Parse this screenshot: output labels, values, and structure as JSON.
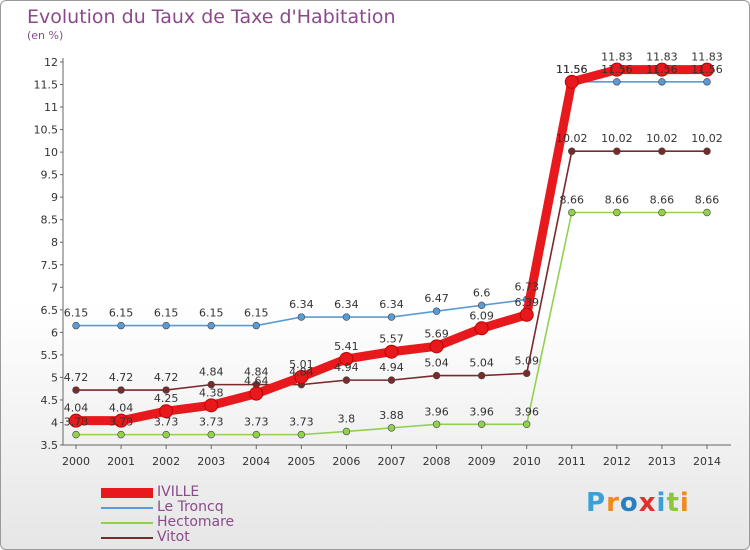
{
  "title": "Evolution du Taux de Taxe d'Habitation",
  "subtitle": "(en %)",
  "logo": {
    "text": "Proxiti",
    "colors": [
      "#3aa0d8",
      "#f08a1c",
      "#2a7fc0",
      "#e03030",
      "#3aa0d8",
      "#8cc63f",
      "#f08a1c"
    ]
  },
  "chart_data": {
    "type": "line",
    "title": "Evolution du Taux de Taxe d'Habitation",
    "subtitle": "(en %)",
    "xlabel": "",
    "ylabel": "",
    "x": [
      "2000",
      "2001",
      "2002",
      "2003",
      "2004",
      "2005",
      "2006",
      "2007",
      "2008",
      "2009",
      "2010",
      "2011",
      "2012",
      "2013",
      "2014"
    ],
    "ylim": [
      3.5,
      12
    ],
    "yticks": [
      "3.5",
      "4",
      "4.5",
      "5",
      "5.5",
      "6",
      "6.5",
      "7",
      "7.5",
      "8",
      "8.5",
      "9",
      "9.5",
      "10",
      "10.5",
      "11",
      "11.5",
      "12"
    ],
    "grid": false,
    "legend": "bottom-left",
    "series": [
      {
        "name": "IVILLE",
        "color": "#e8191c",
        "emphasis": true,
        "values": [
          4.04,
          4.04,
          4.25,
          4.38,
          4.64,
          5.01,
          5.41,
          5.57,
          5.69,
          6.09,
          6.39,
          11.56,
          11.83,
          11.83,
          11.83
        ],
        "labels": [
          "4.04",
          "4.04",
          "4.25",
          "4.38",
          "4.64",
          "5.01",
          "5.41",
          "5.57",
          "5.69",
          "6.09",
          "6.39",
          "11.56",
          "11.83",
          "11.83",
          "11.83"
        ]
      },
      {
        "name": "Le Troncq",
        "color": "#5b9bd5",
        "values": [
          6.15,
          6.15,
          6.15,
          6.15,
          6.15,
          6.34,
          6.34,
          6.34,
          6.47,
          6.6,
          6.73,
          11.56,
          11.56,
          11.56,
          11.56
        ],
        "labels": [
          "6.15",
          "6.15",
          "6.15",
          "6.15",
          "6.15",
          "6.34",
          "6.34",
          "6.34",
          "6.47",
          "6.6",
          "6.73",
          "11.56",
          "11.56",
          "11.56",
          "11.56"
        ]
      },
      {
        "name": "Hectomare",
        "color": "#92d050",
        "values": [
          3.73,
          3.73,
          3.73,
          3.73,
          3.73,
          3.73,
          3.8,
          3.88,
          3.96,
          3.96,
          3.96,
          8.66,
          8.66,
          8.66,
          8.66
        ],
        "labels": [
          "3.73",
          "3.73",
          "3.73",
          "3.73",
          "3.73",
          "3.73",
          "3.8",
          "3.88",
          "3.96",
          "3.96",
          "3.96",
          "8.66",
          "8.66",
          "8.66",
          "8.66"
        ]
      },
      {
        "name": "Vitot",
        "color": "#7b2a2a",
        "values": [
          4.72,
          4.72,
          4.72,
          4.84,
          4.84,
          4.84,
          4.94,
          4.94,
          5.04,
          5.04,
          5.09,
          10.02,
          10.02,
          10.02,
          10.02
        ],
        "labels": [
          "4.72",
          "4.72",
          "4.72",
          "4.84",
          "4.84",
          "4.84",
          "4.94",
          "4.94",
          "5.04",
          "5.04",
          "5.09",
          "10.02",
          "10.02",
          "10.02",
          "10.02"
        ]
      }
    ]
  }
}
